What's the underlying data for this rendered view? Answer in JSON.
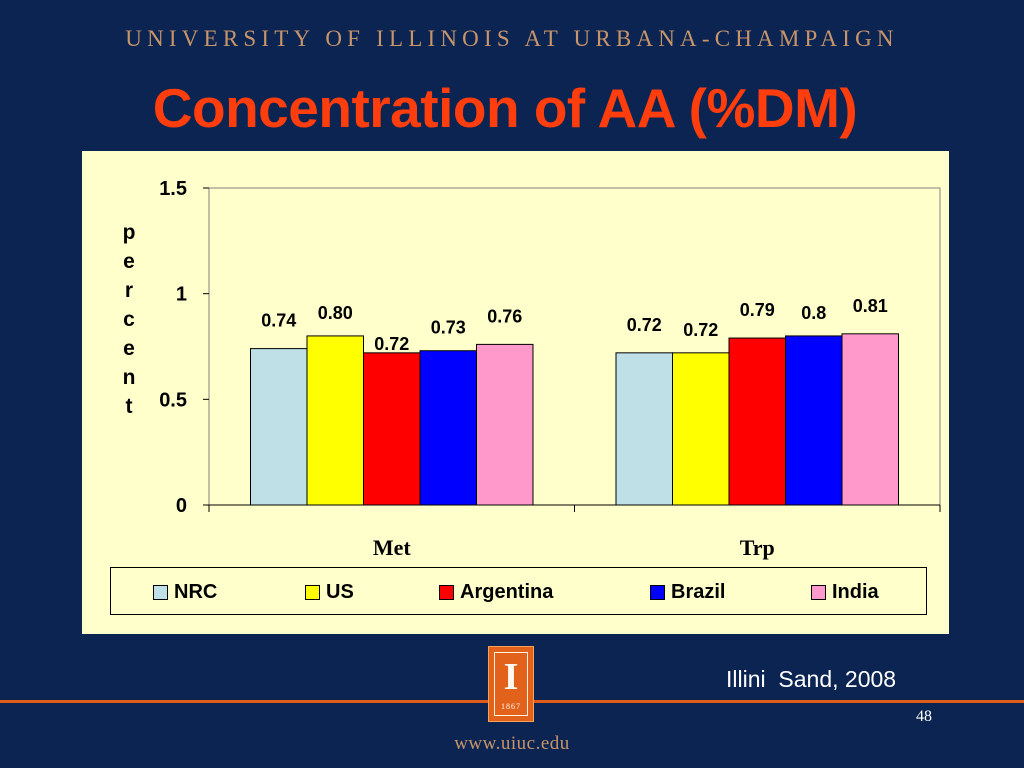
{
  "slide": {
    "university": "UNIVERSITY OF ILLINOIS AT URBANA-CHAMPAIGN",
    "title": "Concentration of AA (%DM)",
    "credit": "Illini  Sand, 2008",
    "logo_glyph": "I",
    "logo_year": "1867",
    "page_number": "48",
    "footer_url": "www.uiuc.edu"
  },
  "colors": {
    "background": "#0b2452",
    "title": "#ff3d0d",
    "header": "#c8956a",
    "chart_background": "#ffffcc",
    "accent_rule": "#e05a1a"
  },
  "chart_data": {
    "type": "bar",
    "categories": [
      "Met",
      "Trp"
    ],
    "series": [
      {
        "name": "NRC",
        "values": [
          0.74,
          0.72
        ],
        "labels": [
          "0.74",
          "0.72"
        ],
        "color": "#bfe0e6"
      },
      {
        "name": "US",
        "values": [
          0.8,
          0.72
        ],
        "labels": [
          "0.80",
          "0.72"
        ],
        "color": "#ffff00"
      },
      {
        "name": "Argentina",
        "values": [
          0.72,
          0.79
        ],
        "labels": [
          "0.72",
          "0.79"
        ],
        "color": "#ff0000"
      },
      {
        "name": "Brazil",
        "values": [
          0.73,
          0.8
        ],
        "labels": [
          "0.73",
          "0.8"
        ],
        "color": "#0000ff"
      },
      {
        "name": "India",
        "values": [
          0.76,
          0.81
        ],
        "labels": [
          "0.76",
          "0.81"
        ],
        "color": "#ff99cc"
      }
    ],
    "ylabel": "percent",
    "ylim": [
      0,
      1.5
    ],
    "yticks": [
      {
        "value": 0,
        "label": "0"
      },
      {
        "value": 0.5,
        "label": "0.5"
      },
      {
        "value": 1,
        "label": "1"
      },
      {
        "value": 1.5,
        "label": "1.5"
      }
    ],
    "grid": false,
    "legend_position": "bottom"
  }
}
